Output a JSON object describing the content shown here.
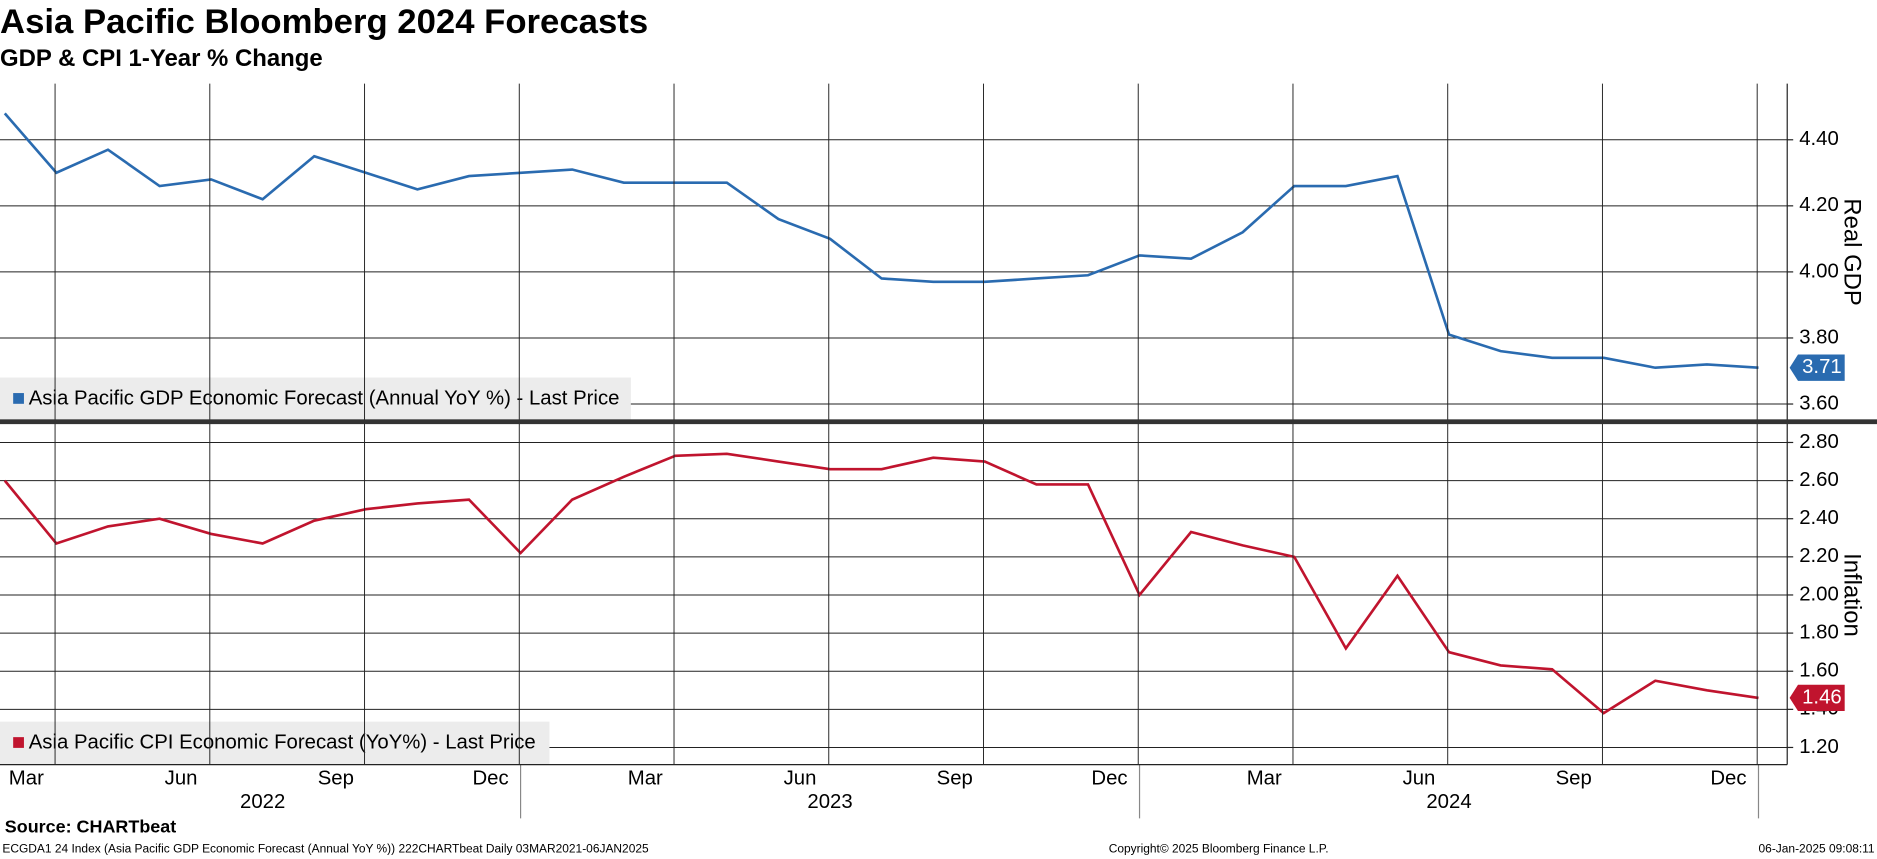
{
  "header": {
    "title": "Asia Pacific Bloomberg 2024 Forecasts",
    "subtitle": "GDP & CPI 1-Year % Change"
  },
  "footer": {
    "source": "Source: CHARTbeat",
    "info": "ECGDA1 24 Index (Asia Pacific GDP Economic Forecast (Annual YoY %)) 222CHARTbeat  Daily 03MAR2021-06JAN2025",
    "copyright": "Copyright© 2025 Bloomberg Finance L.P.",
    "timestamp": "06-Jan-2025 09:08:11"
  },
  "chart_data": [
    {
      "type": "line",
      "y_axis_label": "Real GDP",
      "x": [
        "2022-03",
        "2022-04",
        "2022-05",
        "2022-06",
        "2022-07",
        "2022-08",
        "2022-09",
        "2022-10",
        "2022-11",
        "2022-12",
        "2023-01",
        "2023-02",
        "2023-03",
        "2023-04",
        "2023-05",
        "2023-06",
        "2023-07",
        "2023-08",
        "2023-09",
        "2023-10",
        "2023-11",
        "2023-12",
        "2024-01",
        "2024-02",
        "2024-03",
        "2024-04",
        "2024-05",
        "2024-06",
        "2024-07",
        "2024-08",
        "2024-09",
        "2024-10",
        "2024-11",
        "2024-12",
        "2025-01"
      ],
      "series": [
        {
          "name": "Asia Pacific GDP Economic Forecast (Annual YoY %) - Last Price",
          "color": "#2a6bb0",
          "values": [
            4.48,
            4.3,
            4.37,
            4.26,
            4.28,
            4.22,
            4.35,
            4.3,
            4.25,
            4.29,
            4.3,
            4.31,
            4.27,
            4.27,
            4.27,
            4.16,
            4.1,
            3.98,
            3.97,
            3.97,
            3.98,
            3.99,
            4.05,
            4.04,
            4.12,
            4.26,
            4.26,
            4.29,
            3.81,
            3.76,
            3.74,
            3.74,
            3.71,
            3.72,
            3.71
          ]
        }
      ],
      "xlim": [
        "2022-03",
        "2025-01"
      ],
      "ylim": [
        3.55,
        4.57
      ],
      "yticks": [
        {
          "value": 3.6,
          "label": "3.60"
        },
        {
          "value": 3.8,
          "label": "3.80"
        },
        {
          "value": 4.0,
          "label": "4.00"
        },
        {
          "value": 4.2,
          "label": "4.20"
        },
        {
          "value": 4.4,
          "label": "4.40"
        }
      ],
      "grid": true,
      "legend": "lower left"
    },
    {
      "type": "line",
      "y_axis_label": "Inflation",
      "x": [
        "2022-03",
        "2022-04",
        "2022-05",
        "2022-06",
        "2022-07",
        "2022-08",
        "2022-09",
        "2022-10",
        "2022-11",
        "2022-12",
        "2023-01",
        "2023-02",
        "2023-03",
        "2023-04",
        "2023-05",
        "2023-06",
        "2023-07",
        "2023-08",
        "2023-09",
        "2023-10",
        "2023-11",
        "2023-12",
        "2024-01",
        "2024-02",
        "2024-03",
        "2024-04",
        "2024-05",
        "2024-06",
        "2024-07",
        "2024-08",
        "2024-09",
        "2024-10",
        "2024-11",
        "2024-12",
        "2025-01"
      ],
      "series": [
        {
          "name": "Asia Pacific CPI Economic Forecast (YoY%) - Last Price",
          "color": "#c0142e",
          "values": [
            2.6,
            2.27,
            2.36,
            2.4,
            2.32,
            2.27,
            2.39,
            2.45,
            2.48,
            2.5,
            2.22,
            2.5,
            2.62,
            2.73,
            2.74,
            2.7,
            2.66,
            2.66,
            2.72,
            2.7,
            2.58,
            2.58,
            2.0,
            2.33,
            2.26,
            2.2,
            1.72,
            2.1,
            1.7,
            1.63,
            1.61,
            1.38,
            1.55,
            1.5,
            1.46
          ]
        }
      ],
      "xlim": [
        "2022-03",
        "2025-01"
      ],
      "ylim": [
        1.11,
        2.89
      ],
      "yticks": [
        {
          "value": 1.2,
          "label": "1.20"
        },
        {
          "value": 1.4,
          "label": "1.40"
        },
        {
          "value": 1.6,
          "label": "1.60"
        },
        {
          "value": 1.8,
          "label": "1.80"
        },
        {
          "value": 2.0,
          "label": "2.00"
        },
        {
          "value": 2.2,
          "label": "2.20"
        },
        {
          "value": 2.4,
          "label": "2.40"
        },
        {
          "value": 2.6,
          "label": "2.60"
        },
        {
          "value": 2.8,
          "label": "2.80"
        }
      ],
      "xticks": [
        {
          "value": "2022-03",
          "label": "Mar"
        },
        {
          "value": "2022-06",
          "label": "Jun"
        },
        {
          "value": "2022-09",
          "label": "Sep"
        },
        {
          "value": "2022-12",
          "label": "Dec"
        },
        {
          "value": "2023-03",
          "label": "Mar"
        },
        {
          "value": "2023-06",
          "label": "Jun"
        },
        {
          "value": "2023-09",
          "label": "Sep"
        },
        {
          "value": "2023-12",
          "label": "Dec"
        },
        {
          "value": "2024-03",
          "label": "Mar"
        },
        {
          "value": "2024-06",
          "label": "Jun"
        },
        {
          "value": "2024-09",
          "label": "Sep"
        },
        {
          "value": "2024-12",
          "label": "Dec"
        }
      ],
      "year_labels": [
        "2022",
        "2023",
        "2024"
      ],
      "grid": true,
      "legend": "lower left"
    }
  ]
}
